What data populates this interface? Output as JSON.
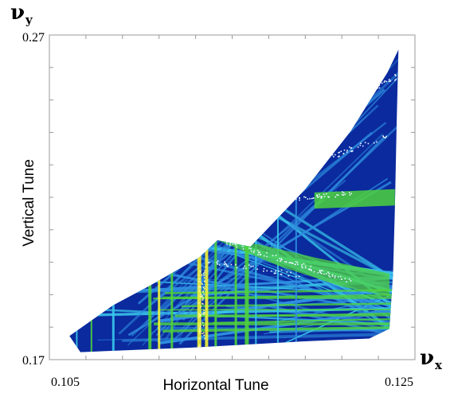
{
  "chart_data": {
    "type": "scatter",
    "title": "",
    "xlabel": "Horizontal Tune",
    "ylabel": "Vertical Tune",
    "x_symbol": {
      "main": "ν",
      "sub": "x"
    },
    "y_symbol": {
      "main": "ν",
      "sub": "y"
    },
    "xlim": [
      0.105,
      0.125
    ],
    "ylim": [
      0.17,
      0.27
    ],
    "x_ticks": [
      {
        "value": 0.105,
        "label": "0.105"
      },
      {
        "value": 0.125,
        "label": "0.125"
      }
    ],
    "y_ticks": [
      {
        "value": 0.17,
        "label": "0.17"
      },
      {
        "value": 0.27,
        "label": "0.27"
      }
    ],
    "region_outline": [
      [
        0.1061,
        0.1773
      ],
      [
        0.1067,
        0.1723
      ],
      [
        0.1128,
        0.1737
      ],
      [
        0.1192,
        0.1757
      ],
      [
        0.1225,
        0.1765
      ],
      [
        0.1236,
        0.1795
      ],
      [
        0.1238,
        0.1965
      ],
      [
        0.1239,
        0.2165
      ],
      [
        0.124,
        0.2425
      ],
      [
        0.1241,
        0.2655
      ],
      [
        0.1235,
        0.2585
      ],
      [
        0.1215,
        0.2405
      ],
      [
        0.119,
        0.2225
      ],
      [
        0.116,
        0.2048
      ],
      [
        0.1142,
        0.2068
      ],
      [
        0.1132,
        0.2015
      ],
      [
        0.1105,
        0.1928
      ],
      [
        0.1085,
        0.1868
      ]
    ],
    "colors": {
      "background_fill": "#0a2a9e",
      "line_blue": "#2f8fe0",
      "line_cyan": "#39c6ea",
      "green": "#4fd23c",
      "yellow": "#f2f23a",
      "white": "#e6f4ff"
    }
  }
}
